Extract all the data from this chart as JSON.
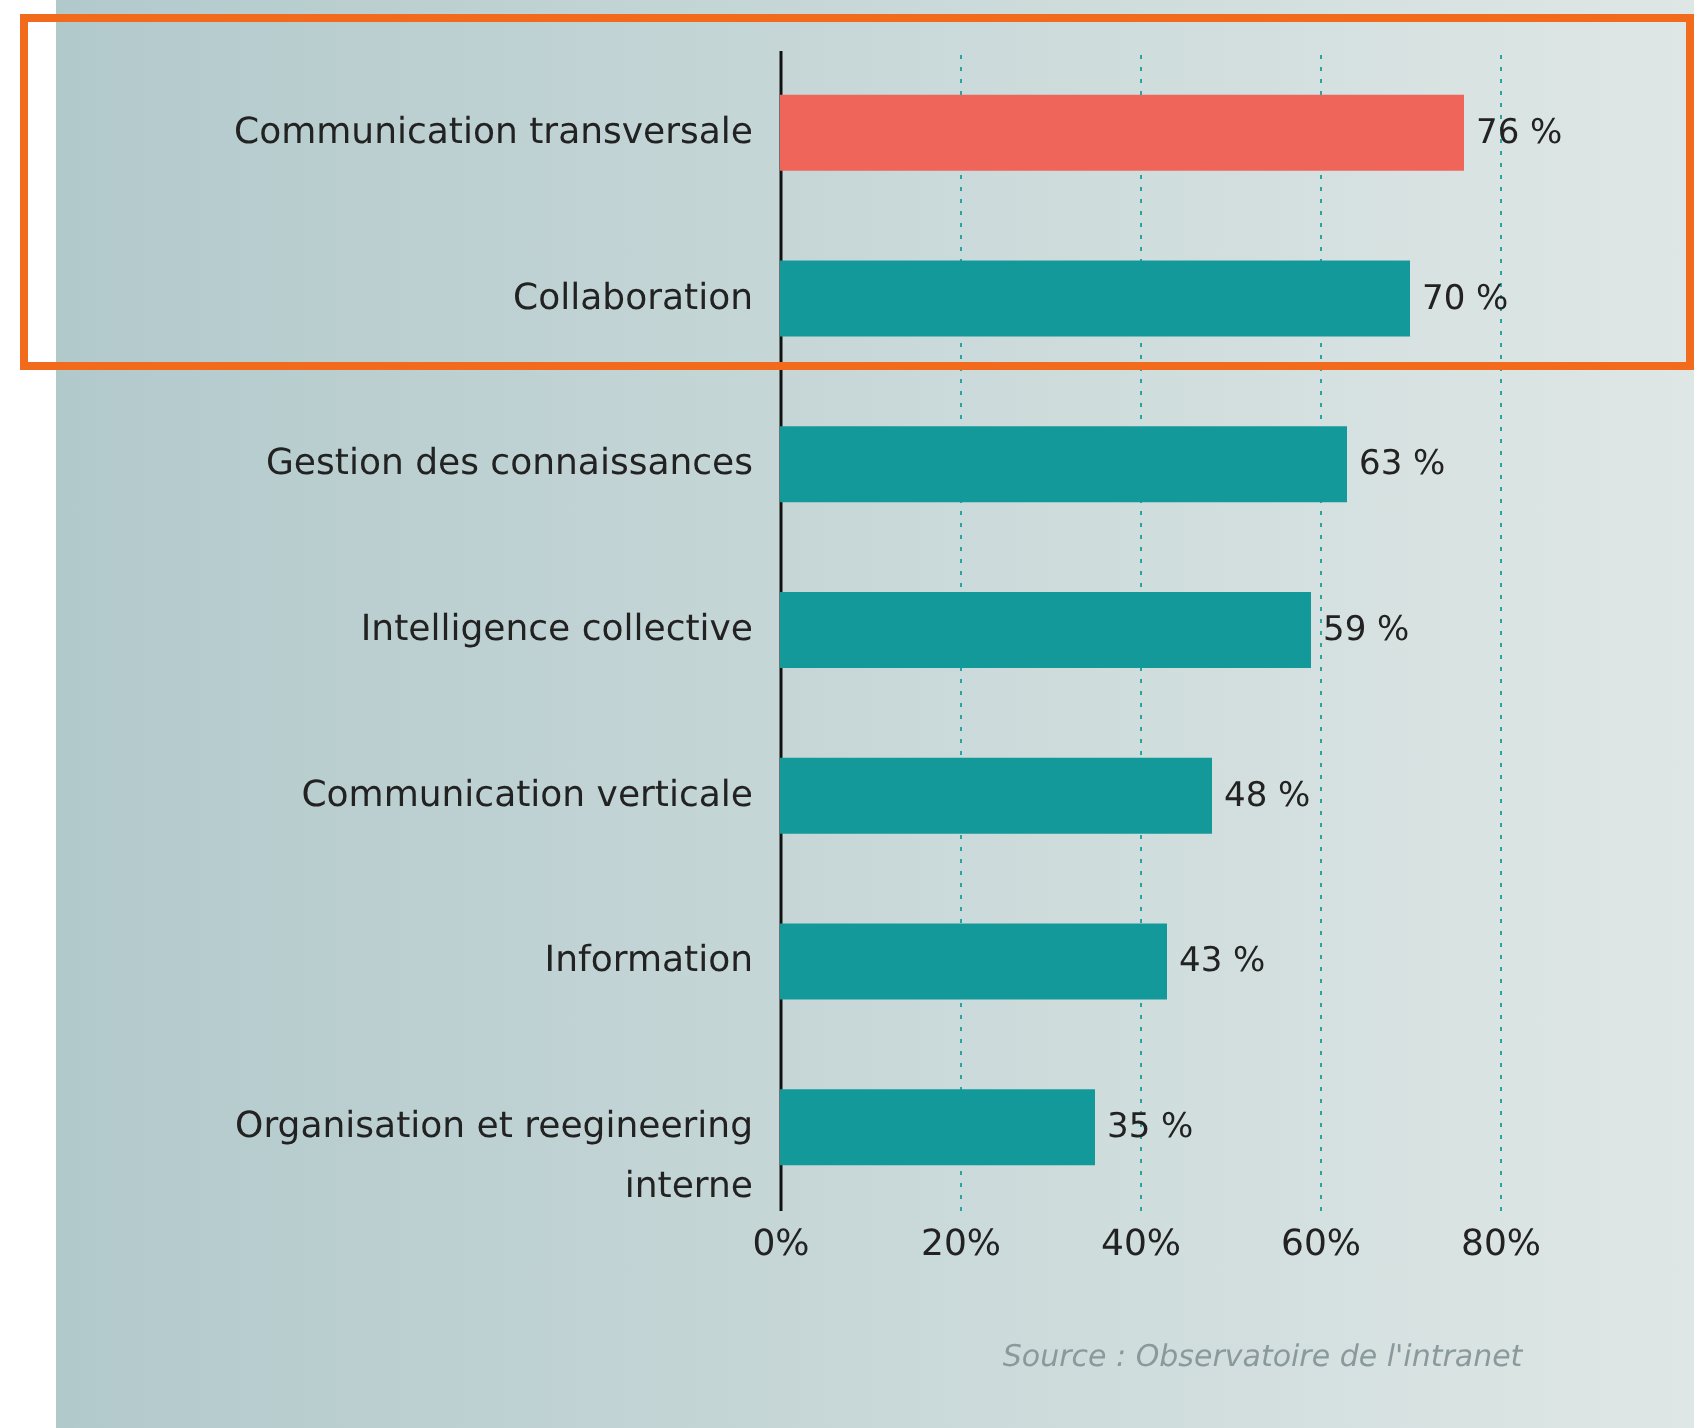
{
  "chart_data": {
    "type": "bar",
    "orientation": "horizontal",
    "categories": [
      "Communication transversale",
      "Collaboration",
      "Gestion des connaissances",
      "Intelligence collective",
      "Communication verticale",
      "Information",
      "Organisation et reegineering interne"
    ],
    "values": [
      76,
      70,
      63,
      59,
      48,
      43,
      35
    ],
    "colors": [
      "#f0655a",
      "#14999a",
      "#14999a",
      "#14999a",
      "#14999a",
      "#14999a",
      "#14999a"
    ],
    "value_labels": [
      "76 %",
      "70 %",
      "63 %",
      "59 %",
      "48 %",
      "43 %",
      "35 %"
    ],
    "xlim": [
      0,
      80
    ],
    "xticks": [
      {
        "value": 0,
        "label": "0%"
      },
      {
        "value": 20,
        "label": "20%"
      },
      {
        "value": 40,
        "label": "40%"
      },
      {
        "value": 60,
        "label": "60%"
      },
      {
        "value": 80,
        "label": "80%"
      }
    ],
    "grid": "x",
    "annotations": [
      "Source : Observatoire de l'intranet"
    ]
  }
}
